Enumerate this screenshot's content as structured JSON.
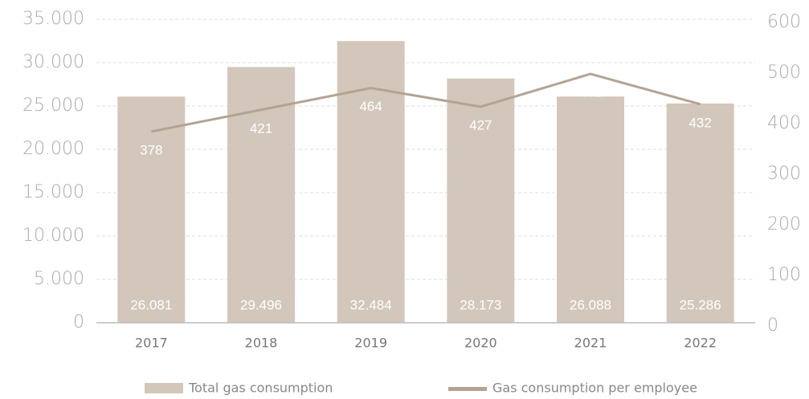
{
  "chart_data": {
    "type": "bar",
    "categories": [
      "2017",
      "2018",
      "2019",
      "2020",
      "2021",
      "2022"
    ],
    "series": [
      {
        "name": "Total gas consumption",
        "type": "bar",
        "color": "#d3c7bb",
        "values": [
          26081,
          29496,
          32484,
          28173,
          26088,
          25286
        ],
        "value_labels": [
          "26.081",
          "29.496",
          "32.484",
          "28.173",
          "26.088",
          "25.286"
        ]
      },
      {
        "name": "Gas consumption per employee",
        "type": "line",
        "axis": "y2",
        "color": "#b3a393",
        "values": [
          378,
          421,
          464,
          427,
          492,
          432
        ]
      }
    ],
    "ylim": [
      0,
      35000
    ],
    "yticks": [
      0,
      {
        "value": 5000,
        "label": "5.000"
      },
      {
        "value": 10000,
        "label": "10.000"
      },
      {
        "value": 15000,
        "label": "15.000"
      },
      {
        "value": 20000,
        "label": "20.000"
      },
      {
        "value": 25000,
        "label": "25.000"
      },
      {
        "value": 30000,
        "label": "30.000"
      },
      {
        "value": 35000,
        "label": "35.000"
      }
    ],
    "y2lim": [
      0,
      600
    ],
    "y2ticks": [
      0,
      100,
      200,
      300,
      400,
      500,
      600
    ],
    "grid": true,
    "legend": "bottom"
  }
}
